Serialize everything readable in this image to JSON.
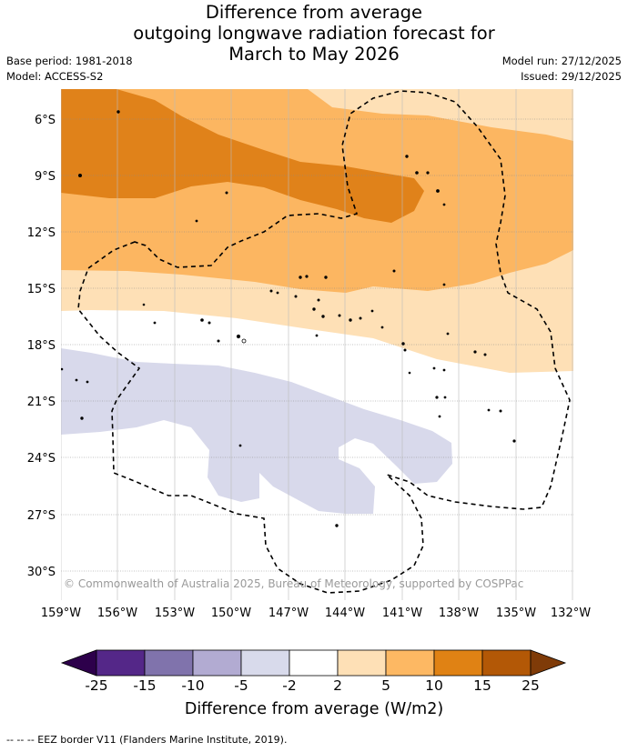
{
  "title": {
    "line1": "Difference from average",
    "line2": "outgoing longwave radiation forecast for",
    "line3": "March to May 2026"
  },
  "meta": {
    "base_period": "Base period: 1981-2018",
    "model": "Model: ACCESS-S2",
    "model_run": "Model run: 27/12/2025",
    "issued": "Issued: 29/12/2025"
  },
  "map": {
    "lat_labels": [
      "6°S",
      "9°S",
      "12°S",
      "15°S",
      "18°S",
      "21°S",
      "24°S",
      "27°S",
      "30°S"
    ],
    "lon_labels": [
      "159°W",
      "156°W",
      "153°W",
      "150°W",
      "147°W",
      "144°W",
      "141°W",
      "138°W",
      "135°W",
      "132°W"
    ],
    "copyright": "© Commonwealth of Australia 2025, Bureau of Meteorology, supported by COSPPac",
    "colors": {
      "bin_10_15": "#e0821a",
      "bin_5_10": "#fcb661",
      "bin_2_5": "#fee0b6",
      "bin_neg5_neg2": "#d8d9eb",
      "neutral": "#ffffff",
      "eez_line": "#000000"
    }
  },
  "colorbar": {
    "ticks": [
      "-25",
      "-15",
      "-10",
      "-5",
      "-2",
      "2",
      "5",
      "10",
      "15",
      "25"
    ],
    "colors": [
      "#2d004b",
      "#542788",
      "#8073ac",
      "#b2abd2",
      "#d8daeb",
      "#ffffff",
      "#fee0b6",
      "#fdb863",
      "#e08214",
      "#b35806",
      "#7f3b08"
    ],
    "label": "Difference from average (W/m2)"
  },
  "legend": {
    "eez": "--  --  -- EEZ border V11 (Flanders Marine Institute, 2019)."
  }
}
